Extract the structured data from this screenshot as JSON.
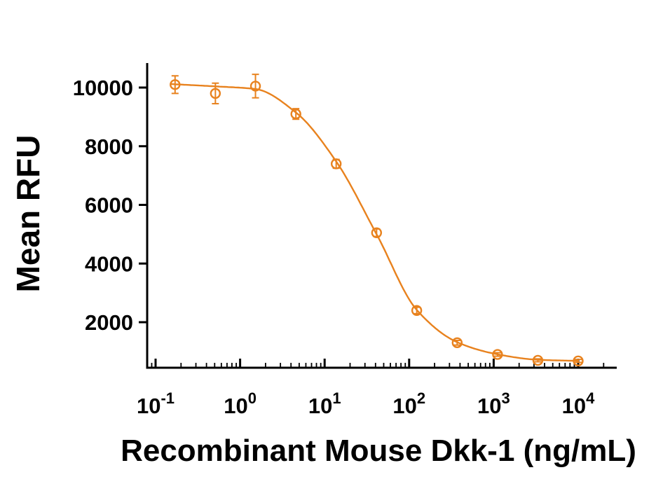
{
  "chart_data": {
    "type": "scatter",
    "title": "",
    "xlabel": "Recombinant Mouse Dkk-1 (ng/mL)",
    "ylabel": "Mean RFU",
    "x_scale": "log10",
    "xlim_exponents": [
      -1.1,
      4.45
    ],
    "ylim": [
      450,
      10850
    ],
    "grid": false,
    "legend": false,
    "axis_color": "#000000",
    "x_ticks": [
      {
        "exponent": -1,
        "base": "10",
        "exp": "-1"
      },
      {
        "exponent": 0,
        "base": "10",
        "exp": "0"
      },
      {
        "exponent": 1,
        "base": "10",
        "exp": "1"
      },
      {
        "exponent": 2,
        "base": "10",
        "exp": "2"
      },
      {
        "exponent": 3,
        "base": "10",
        "exp": "3"
      },
      {
        "exponent": 4,
        "base": "10",
        "exp": "4"
      }
    ],
    "y_ticks": [
      2000,
      4000,
      6000,
      8000,
      10000
    ],
    "series": [
      {
        "color": "#E8821E",
        "marker": "open-circle",
        "x": [
          0.17,
          0.51,
          1.52,
          4.57,
          13.7,
          41.2,
          123,
          370,
          1111,
          3333,
          10000
        ],
        "y": [
          10100,
          9800,
          10050,
          9100,
          7400,
          5050,
          2400,
          1300,
          900,
          700,
          680
        ],
        "y_err": [
          300,
          350,
          400,
          180,
          150,
          130,
          110,
          80,
          60,
          50,
          50
        ]
      }
    ],
    "fit_curve": {
      "model": "smoothed dose-response (inhibition)",
      "points": [
        [
          0.15,
          10120
        ],
        [
          0.51,
          10040
        ],
        [
          1.52,
          9950
        ],
        [
          4.57,
          9150
        ],
        [
          13.7,
          7480
        ],
        [
          41.2,
          5000
        ],
        [
          123,
          2420
        ],
        [
          370,
          1320
        ],
        [
          1111,
          905
        ],
        [
          3333,
          720
        ],
        [
          10000,
          680
        ]
      ]
    }
  }
}
